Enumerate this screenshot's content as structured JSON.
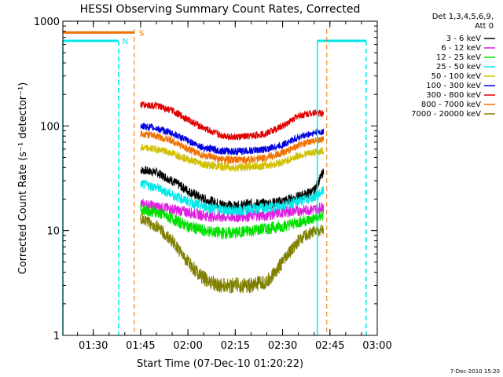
{
  "chart_data": {
    "type": "line",
    "title": "HESSI Observing Summary Count Rates, Corrected",
    "xlabel": "Start Time (07-Dec-10 01:20:22)",
    "ylabel": "Corrected Count Rate (s⁻¹ detector⁻¹)",
    "yscale": "log",
    "ylim": [
      1,
      1000
    ],
    "xlim": [
      "01:20:22",
      "03:00:00"
    ],
    "xticks": [
      "01:30",
      "01:45",
      "02:00",
      "02:15",
      "02:30",
      "02:45",
      "03:00"
    ],
    "yticks": [
      "1",
      "10",
      "100",
      "1000"
    ],
    "legend_header": [
      "Det 1,3,4,5,6,9,",
      "Att 0"
    ],
    "legend_position": "right, outside plot",
    "series": [
      {
        "name": "3 - 6 keV",
        "color": "#000000",
        "x": [
          "01:45",
          "01:50",
          "01:55",
          "02:00",
          "02:05",
          "02:10",
          "02:15",
          "02:20",
          "02:25",
          "02:30",
          "02:35",
          "02:40",
          "02:43"
        ],
        "values": [
          38,
          36,
          30,
          24,
          20,
          18,
          17,
          18,
          18,
          19,
          21,
          24,
          37
        ]
      },
      {
        "name": "6 - 12 keV",
        "color": "#e020e0",
        "x": [
          "01:45",
          "01:50",
          "01:55",
          "02:00",
          "02:05",
          "02:10",
          "02:15",
          "02:20",
          "02:25",
          "02:30",
          "02:35",
          "02:40",
          "02:43"
        ],
        "values": [
          18,
          17,
          16,
          15,
          14,
          13.5,
          13.5,
          14,
          14,
          15,
          15.5,
          16,
          17
        ]
      },
      {
        "name": "12 - 25 keV",
        "color": "#00e000",
        "x": [
          "01:45",
          "01:50",
          "01:55",
          "02:00",
          "02:05",
          "02:10",
          "02:15",
          "02:20",
          "02:25",
          "02:30",
          "02:35",
          "02:40",
          "02:43"
        ],
        "values": [
          16,
          15,
          13,
          11,
          10,
          9.5,
          9.5,
          10,
          10.5,
          11,
          12,
          13,
          14
        ]
      },
      {
        "name": "25 - 50 keV",
        "color": "#00e8e8",
        "x": [
          "01:45",
          "01:50",
          "01:55",
          "02:00",
          "02:05",
          "02:10",
          "02:15",
          "02:20",
          "02:25",
          "02:30",
          "02:35",
          "02:40",
          "02:43"
        ],
        "values": [
          28,
          26,
          22,
          19,
          17,
          16,
          15.5,
          16,
          16.5,
          17.5,
          19,
          21,
          24
        ]
      },
      {
        "name": "50 - 100 keV",
        "color": "#d0c000",
        "x": [
          "01:45",
          "01:50",
          "01:55",
          "02:00",
          "02:05",
          "02:10",
          "02:15",
          "02:20",
          "02:25",
          "02:30",
          "02:35",
          "02:40",
          "02:43"
        ],
        "values": [
          62,
          60,
          55,
          48,
          43,
          41,
          40,
          41,
          42,
          45,
          52,
          56,
          58
        ]
      },
      {
        "name": "100 - 300 keV",
        "color": "#0000e0",
        "x": [
          "01:45",
          "01:50",
          "01:55",
          "02:00",
          "02:05",
          "02:10",
          "02:15",
          "02:20",
          "02:25",
          "02:30",
          "02:35",
          "02:40",
          "02:43"
        ],
        "values": [
          100,
          95,
          85,
          72,
          62,
          58,
          57,
          58,
          60,
          66,
          78,
          86,
          88
        ]
      },
      {
        "name": "300 - 800 keV",
        "color": "#e00000",
        "x": [
          "01:45",
          "01:50",
          "01:55",
          "02:00",
          "02:05",
          "02:10",
          "02:15",
          "02:20",
          "02:25",
          "02:30",
          "02:35",
          "02:40",
          "02:43"
        ],
        "values": [
          160,
          155,
          140,
          115,
          95,
          82,
          78,
          80,
          85,
          100,
          125,
          135,
          130
        ]
      },
      {
        "name": "800 - 7000 keV",
        "color": "#f07000",
        "x": [
          "01:45",
          "01:50",
          "01:55",
          "02:00",
          "02:05",
          "02:10",
          "02:15",
          "02:20",
          "02:25",
          "02:30",
          "02:35",
          "02:40",
          "02:43"
        ],
        "values": [
          85,
          80,
          72,
          60,
          52,
          48,
          47,
          48,
          50,
          55,
          65,
          72,
          75
        ]
      },
      {
        "name": "7000 - 20000 keV",
        "color": "#808000",
        "x": [
          "01:45",
          "01:50",
          "01:55",
          "02:00",
          "02:05",
          "02:10",
          "02:15",
          "02:20",
          "02:25",
          "02:30",
          "02:35",
          "02:40",
          "02:43"
        ],
        "values": [
          13,
          11,
          8,
          5,
          3.5,
          3,
          3,
          3,
          3.2,
          5,
          8,
          10,
          10
        ]
      }
    ],
    "annotations": {
      "night": {
        "label": "N",
        "color": "#00e8e8",
        "level": 650,
        "intervals": [
          [
            "01:20:22",
            "01:38:00"
          ],
          [
            "02:41:00",
            "02:56:30"
          ]
        ]
      },
      "saa": {
        "label": "S",
        "color": "#f07000",
        "level": 780,
        "intervals": [
          [
            "01:20:22",
            "01:43:00"
          ]
        ],
        "end_markers": [
          "01:43:00",
          "02:44:00"
        ]
      }
    }
  },
  "footer_timestamp": "7-Dec-2010 15:20"
}
